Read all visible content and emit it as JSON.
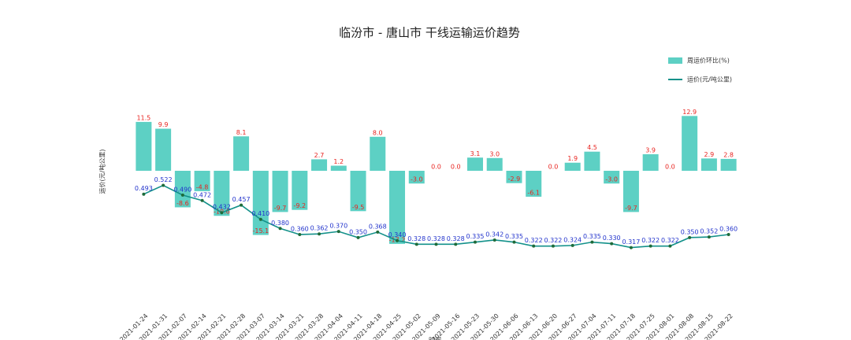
{
  "chart_data": {
    "type": "bar",
    "title": "临汾市 - 唐山市 干线运输运价趋势",
    "x_label": "时间",
    "y_label": "运价(元/吨公里)",
    "categories": [
      "2021-01-24",
      "2021-01-31",
      "2021-02-07",
      "2021-02-14",
      "2021-02-21",
      "2021-02-28",
      "2021-03-07",
      "2021-03-14",
      "2021-03-21",
      "2021-03-28",
      "2021-04-04",
      "2021-04-11",
      "2021-04-18",
      "2021-04-25",
      "2021-05-02",
      "2021-05-09",
      "2021-05-16",
      "2021-05-23",
      "2021-05-30",
      "2021-06-06",
      "2021-06-13",
      "2021-06-20",
      "2021-06-27",
      "2021-07-04",
      "2021-07-11",
      "2021-07-18",
      "2021-07-25",
      "2021-08-01",
      "2021-08-08",
      "2021-08-15",
      "2021-08-22"
    ],
    "ylim": [
      -30,
      20
    ],
    "y2lim": [
      0.15,
      0.85
    ],
    "series": [
      {
        "name": "周运价环比(%)",
        "type": "bar",
        "color": "#5dd0c4",
        "label_color": "#e8231f",
        "values": [
          11.5,
          9.9,
          -8.6,
          -4.8,
          -10.6,
          8.1,
          -15.1,
          -9.7,
          -9.2,
          2.7,
          1.2,
          -9.5,
          8.0,
          -17.2,
          -3.0,
          0.0,
          0.0,
          3.1,
          3.0,
          -2.9,
          -6.1,
          0.0,
          1.9,
          4.5,
          -3.0,
          -9.7,
          3.9,
          0.0,
          12.9,
          2.9,
          2.8
        ],
        "value_labels": [
          "11.5",
          "9.9",
          "-8.6",
          "-4.8",
          "-10.6",
          "8.1",
          "-15.1",
          "-9.7",
          "-9.2",
          "2.7",
          "1.2",
          "-9.5",
          "8.0",
          "-17.2",
          "-3.0",
          "0.0",
          "0.0",
          "3.1",
          "3.0",
          "-2.9",
          "-6.1",
          "0.0",
          "1.9",
          "4.5",
          "-3.0",
          "-9.7",
          "3.9",
          "0.0",
          "12.9",
          "2.9",
          "2.8"
        ]
      },
      {
        "name": "运价(元/吨公里)",
        "type": "line",
        "axis": "y2",
        "color": "#13918a",
        "marker_color": "#1f6b3a",
        "label_color": "#2233cc",
        "values": [
          0.493,
          0.522,
          0.49,
          0.472,
          0.432,
          0.457,
          0.41,
          0.38,
          0.36,
          0.362,
          0.37,
          0.35,
          0.368,
          0.34,
          0.328,
          0.328,
          0.328,
          0.335,
          0.342,
          0.335,
          0.322,
          0.322,
          0.324,
          0.335,
          0.33,
          0.317,
          0.322,
          0.322,
          0.35,
          0.352,
          0.36
        ],
        "value_labels": [
          "0.493",
          "0.522",
          "0.490",
          "0.472",
          "0.432",
          "0.457",
          "0.410",
          "0.380",
          "0.360",
          "0.362",
          "0.370",
          "0.350",
          "0.368",
          "0.340",
          "0.328",
          "0.328",
          "0.328",
          "0.335",
          "0.342",
          "0.335",
          "0.322",
          "0.322",
          "0.324",
          "0.335",
          "0.330",
          "0.317",
          "0.322",
          "0.322",
          "0.350",
          "0.352",
          "0.360"
        ]
      }
    ],
    "legend": "upper right"
  }
}
